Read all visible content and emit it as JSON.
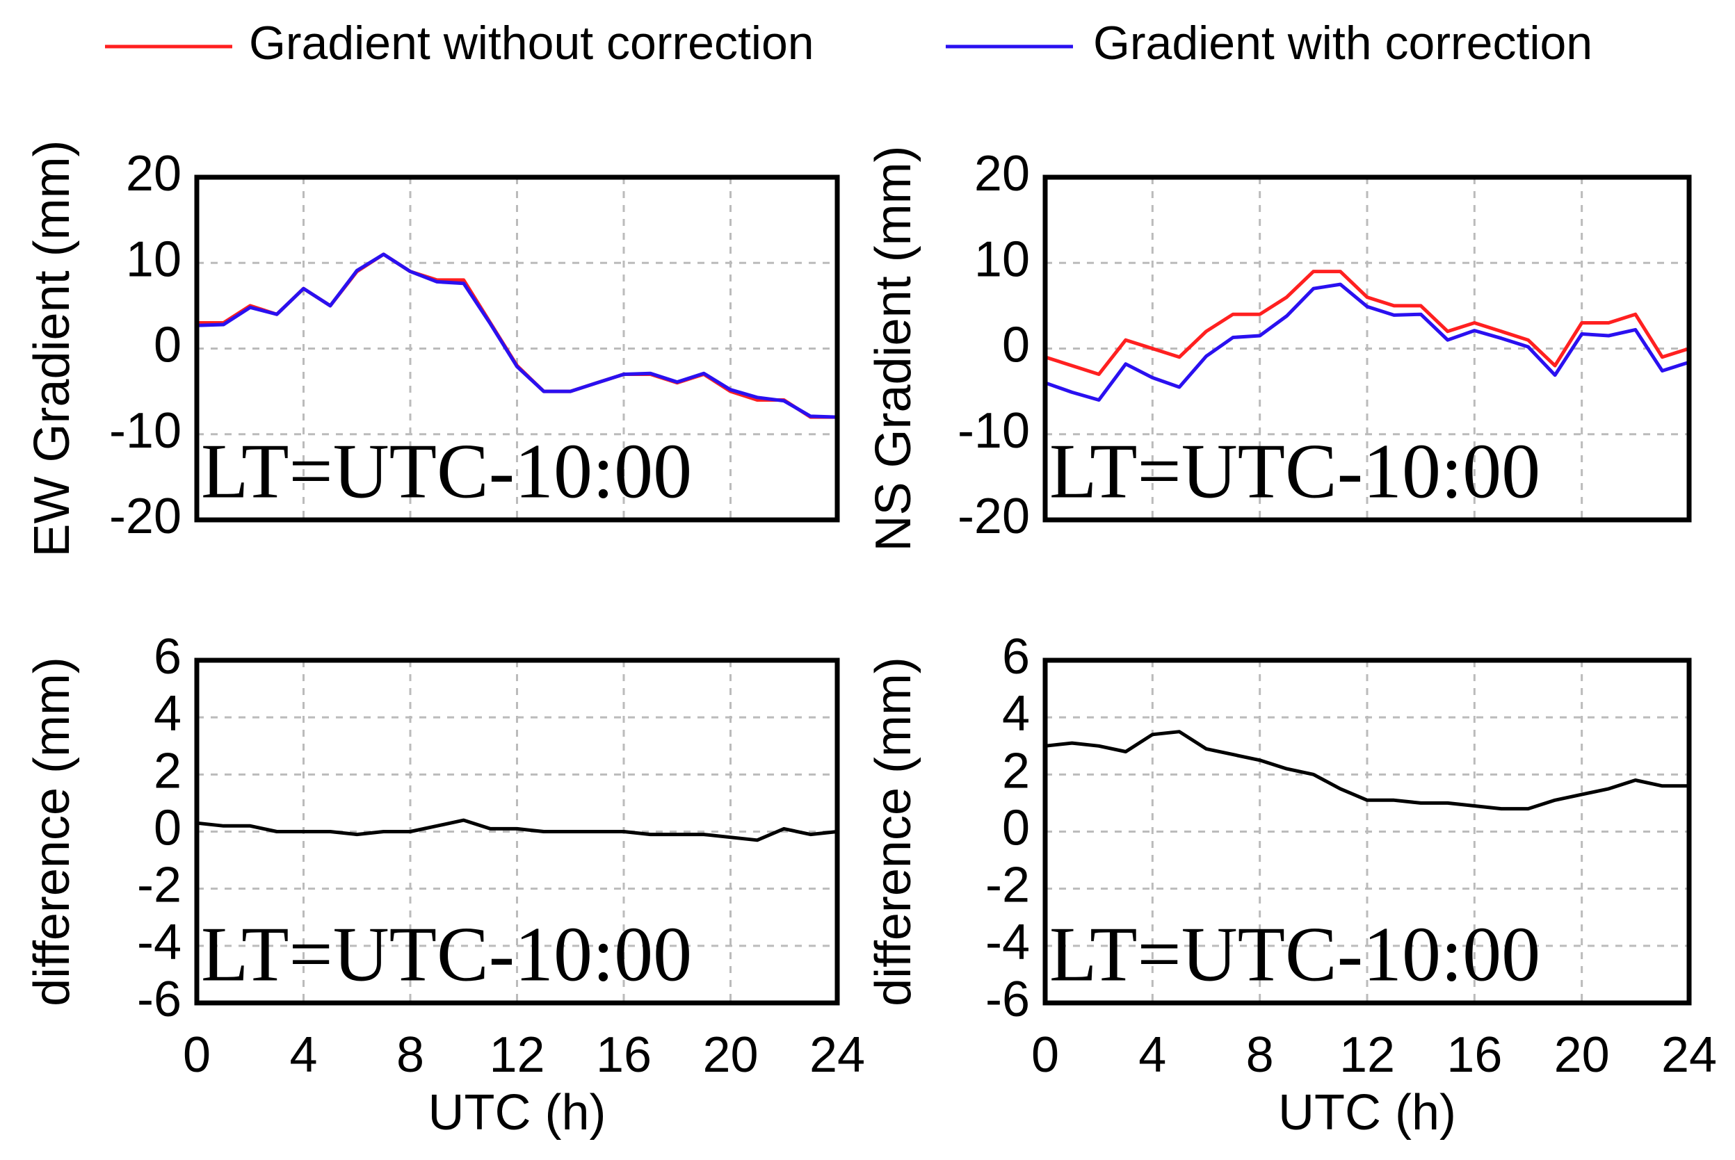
{
  "chart_data": [
    {
      "type": "line",
      "ylabel": "EW Gradient (mm)",
      "annotation": "LT=UTC-10:00",
      "x": [
        0,
        1,
        2,
        3,
        4,
        5,
        6,
        7,
        8,
        9,
        10,
        11,
        12,
        13,
        14,
        15,
        16,
        17,
        18,
        19,
        20,
        21,
        22,
        23,
        24
      ],
      "series": [
        {
          "name": "Gradient without correction",
          "color": "#ff2020",
          "values": [
            3,
            3,
            5,
            4,
            7,
            5,
            9,
            11,
            9,
            8,
            8,
            3,
            -2,
            -5,
            -5,
            -4,
            -3,
            -3,
            -4,
            -3,
            -5,
            -6,
            -6,
            -8,
            -8
          ]
        },
        {
          "name": "Gradient with correction",
          "color": "#2a10f0",
          "values": [
            2.7,
            2.8,
            4.8,
            4,
            7,
            5,
            9.1,
            11,
            9,
            7.8,
            7.6,
            2.9,
            -2.1,
            -5,
            -5,
            -4,
            -3,
            -2.9,
            -3.9,
            -2.9,
            -4.8,
            -5.7,
            -6.1,
            -7.9,
            -8
          ]
        }
      ],
      "xlim": [
        0,
        24
      ],
      "xticks": [
        0,
        4,
        8,
        12,
        16,
        20,
        24
      ],
      "show_xtick_labels": false,
      "ylim": [
        -20,
        20
      ],
      "yticks": [
        -20,
        -10,
        0,
        10,
        20
      ],
      "grid": true
    },
    {
      "type": "line",
      "ylabel": "NS Gradient (mm)",
      "annotation": "LT=UTC-10:00",
      "x": [
        0,
        1,
        2,
        3,
        4,
        5,
        6,
        7,
        8,
        9,
        10,
        11,
        12,
        13,
        14,
        15,
        16,
        17,
        18,
        19,
        20,
        21,
        22,
        23,
        24
      ],
      "series": [
        {
          "color": "#ff2020",
          "values": [
            -1,
            -2,
            -3,
            1,
            0,
            -1,
            2,
            4,
            4,
            6,
            9,
            9,
            6,
            5,
            5,
            2,
            3,
            2,
            1,
            -2,
            3,
            3,
            4,
            -1,
            0
          ]
        },
        {
          "color": "#2a10f0",
          "values": [
            -4,
            -5.1,
            -6,
            -1.8,
            -3.4,
            -4.5,
            -0.9,
            1.3,
            1.5,
            3.8,
            7,
            7.5,
            4.9,
            3.9,
            4,
            1,
            2.1,
            1.2,
            0.2,
            -3.1,
            1.7,
            1.5,
            2.2,
            -2.6,
            -1.6
          ]
        }
      ],
      "xlim": [
        0,
        24
      ],
      "xticks": [
        0,
        4,
        8,
        12,
        16,
        20,
        24
      ],
      "show_xtick_labels": false,
      "ylim": [
        -20,
        20
      ],
      "yticks": [
        -20,
        -10,
        0,
        10,
        20
      ],
      "grid": true
    },
    {
      "type": "line",
      "ylabel": "difference (mm)",
      "xlabel": "UTC (h)",
      "annotation": "LT=UTC-10:00",
      "x": [
        0,
        1,
        2,
        3,
        4,
        5,
        6,
        7,
        8,
        9,
        10,
        11,
        12,
        13,
        14,
        15,
        16,
        17,
        18,
        19,
        20,
        21,
        22,
        23,
        24
      ],
      "series": [
        {
          "color": "#000000",
          "values": [
            0.3,
            0.2,
            0.2,
            0,
            0,
            0,
            -0.1,
            0,
            0,
            0.2,
            0.4,
            0.1,
            0.1,
            0,
            0,
            0,
            0,
            -0.1,
            -0.1,
            -0.1,
            -0.2,
            -0.3,
            0.1,
            -0.1,
            0
          ]
        }
      ],
      "xlim": [
        0,
        24
      ],
      "xticks": [
        0,
        4,
        8,
        12,
        16,
        20,
        24
      ],
      "show_xtick_labels": true,
      "ylim": [
        -6,
        6
      ],
      "yticks": [
        -6,
        -4,
        -2,
        0,
        2,
        4,
        6
      ],
      "grid": true
    },
    {
      "type": "line",
      "ylabel": "difference (mm)",
      "xlabel": "UTC (h)",
      "annotation": "LT=UTC-10:00",
      "x": [
        0,
        1,
        2,
        3,
        4,
        5,
        6,
        7,
        8,
        9,
        10,
        11,
        12,
        13,
        14,
        15,
        16,
        17,
        18,
        19,
        20,
        21,
        22,
        23,
        24
      ],
      "series": [
        {
          "color": "#000000",
          "values": [
            3,
            3.1,
            3,
            2.8,
            3.4,
            3.5,
            2.9,
            2.7,
            2.5,
            2.2,
            2.0,
            1.5,
            1.1,
            1.1,
            1.0,
            1.0,
            0.9,
            0.8,
            0.8,
            1.1,
            1.3,
            1.5,
            1.8,
            1.6,
            1.6
          ]
        }
      ],
      "xlim": [
        0,
        24
      ],
      "xticks": [
        0,
        4,
        8,
        12,
        16,
        20,
        24
      ],
      "show_xtick_labels": true,
      "ylim": [
        -6,
        6
      ],
      "yticks": [
        -6,
        -4,
        -2,
        0,
        2,
        4,
        6
      ],
      "grid": true
    }
  ]
}
